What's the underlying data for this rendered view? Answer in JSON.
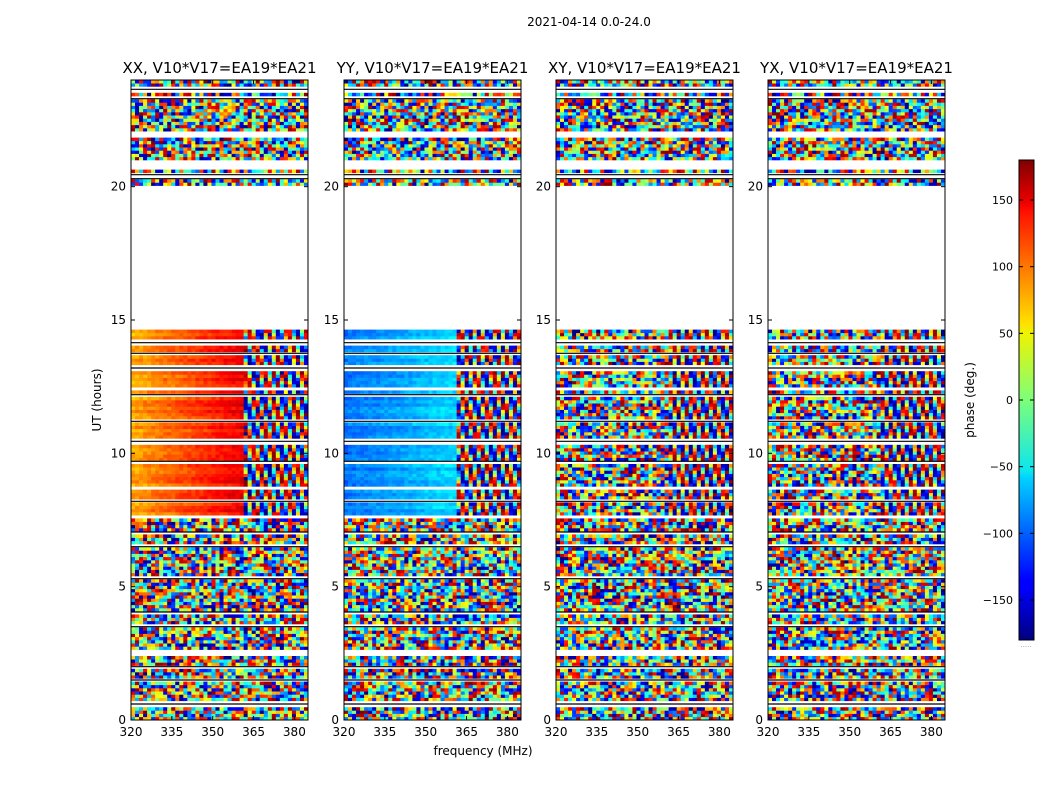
{
  "figure": {
    "suptitle": "2021-04-14 0.0-24.0",
    "xlabel": "frequency (MHz)",
    "ylabel": "UT (hours)"
  },
  "colorbar": {
    "label": "phase (deg.)",
    "ticks": [
      150,
      100,
      50,
      0,
      -50,
      -100,
      -150
    ],
    "tick_labels": [
      "150",
      "100",
      "50",
      "0",
      "−50",
      "−100",
      "−150"
    ],
    "range": [
      -180,
      180
    ],
    "colormap": "jet",
    "footer": "....."
  },
  "chart_data": [
    {
      "type": "heatmap",
      "title": "XX, V10*V17=EA19*EA21",
      "xlim": [
        320,
        385
      ],
      "ylim": [
        0,
        24
      ],
      "xticks": [
        320,
        335,
        350,
        365,
        380
      ],
      "yticks": [
        0,
        5,
        10,
        15,
        20
      ],
      "zlabel": "phase (deg.)",
      "phase_pattern": {
        "coherent_ranges_mhz": [
          [
            320,
            361
          ]
        ],
        "base_phase_deg": 75,
        "slope_deg_per_mhz": 1.6
      }
    },
    {
      "type": "heatmap",
      "title": "YY, V10*V17=EA19*EA21",
      "xlim": [
        320,
        385
      ],
      "ylim": [
        0,
        24
      ],
      "xticks": [
        320,
        335,
        350,
        365,
        380
      ],
      "yticks": [
        0,
        5,
        10,
        15,
        20
      ],
      "zlabel": "phase (deg.)",
      "phase_pattern": {
        "coherent_ranges_mhz": [
          [
            320,
            361
          ]
        ],
        "base_phase_deg": -95,
        "slope_deg_per_mhz": 0.9
      }
    },
    {
      "type": "heatmap",
      "title": "XY, V10*V17=EA19*EA21",
      "xlim": [
        320,
        385
      ],
      "ylim": [
        0,
        24
      ],
      "xticks": [
        320,
        335,
        350,
        365,
        380
      ],
      "yticks": [
        0,
        5,
        10,
        15,
        20
      ],
      "zlabel": "phase (deg.)",
      "phase_pattern": {
        "coherent_ranges_mhz": [],
        "base_phase_deg": -120,
        "slope_deg_per_mhz": 0.5
      }
    },
    {
      "type": "heatmap",
      "title": "YX, V10*V17=EA19*EA21",
      "xlim": [
        320,
        385
      ],
      "ylim": [
        0,
        24
      ],
      "xticks": [
        320,
        335,
        350,
        365,
        380
      ],
      "yticks": [
        0,
        5,
        10,
        15,
        20
      ],
      "zlabel": "phase (deg.)",
      "phase_pattern": {
        "coherent_ranges_mhz": [],
        "base_phase_deg": -60,
        "slope_deg_per_mhz": 0.5
      }
    }
  ],
  "time_structure": {
    "data_intervals_hours": [
      [
        0,
        2.4
      ],
      [
        2.6,
        7.6
      ],
      [
        7.7,
        8.7
      ],
      [
        8.8,
        12.4
      ],
      [
        12.5,
        14.6
      ],
      [
        20.0,
        20.6
      ],
      [
        21.0,
        21.9
      ],
      [
        22.05,
        24
      ]
    ],
    "blank_rows_hours": [
      0.6,
      1.5,
      2.0,
      3.5,
      4.05,
      5.3,
      6.5,
      7.05,
      8.2,
      9.7,
      10.45,
      11.2,
      12.2,
      13.2,
      13.75,
      14.15,
      20.3,
      20.45,
      23.3,
      23.65
    ]
  }
}
